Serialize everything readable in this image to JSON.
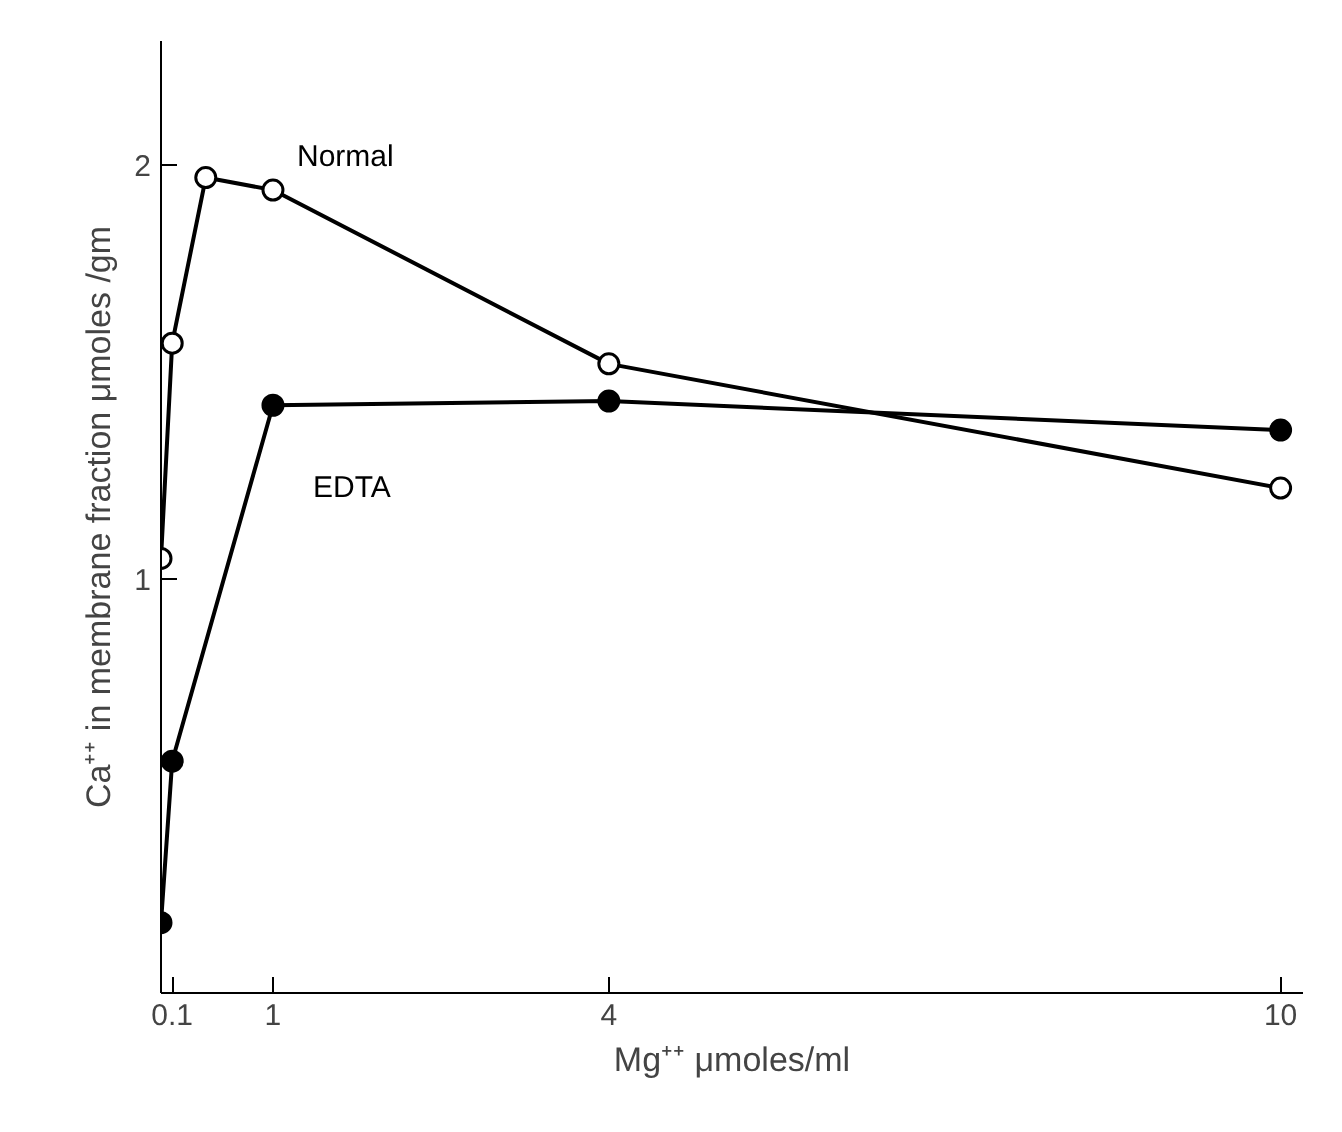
{
  "chart_data": {
    "type": "line",
    "xlabel": "Mg⁺⁺ μmoles/ml",
    "ylabel": "Ca⁺⁺ in membrane fraction μmoles /gm",
    "xlim": [
      0,
      10.2
    ],
    "ylim": [
      0,
      2.3
    ],
    "xticks": [
      0.1,
      1,
      4,
      10
    ],
    "yticks": [
      1,
      2
    ],
    "grid": false,
    "marker": "circle",
    "line_style": "solid",
    "series": [
      {
        "name": "Normal",
        "color": "#000000",
        "x": [
          0,
          0.1,
          0.4,
          1,
          4,
          10
        ],
        "values": [
          1.05,
          1.57,
          1.97,
          1.94,
          1.52,
          1.22
        ]
      },
      {
        "name": "EDTA",
        "color": "#000000",
        "x": [
          0,
          0.1,
          1,
          4,
          10
        ],
        "values": [
          0.17,
          0.56,
          1.42,
          1.43,
          1.36
        ]
      }
    ]
  }
}
